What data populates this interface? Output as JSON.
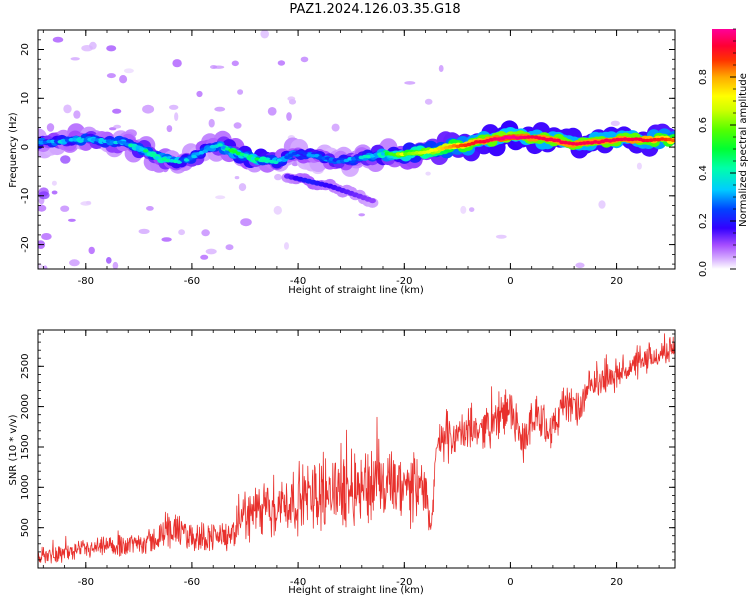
{
  "title": "PAZ1.2024.126.03.35.G18",
  "chart_data": [
    {
      "type": "heatmap",
      "title": "PAZ1.2024.126.03.35.G18",
      "xlabel": "Height of straight line (km)",
      "ylabel": "Frequency (Hz)",
      "xlim": [
        -89,
        31
      ],
      "ylim": [
        -25,
        24
      ],
      "xticks": [
        -80,
        -60,
        -40,
        -20,
        0,
        20
      ],
      "xtick_labels": [
        "-80",
        "-60",
        "-40",
        "-20",
        "0",
        "20"
      ],
      "yticks": [
        -20,
        -10,
        0,
        10,
        20
      ],
      "ytick_labels": [
        "-20",
        "-10",
        "0",
        "10",
        "20"
      ],
      "colorbar": {
        "label": "Normalized spectral amplitude",
        "range": [
          0,
          1
        ],
        "ticks": [
          0.0,
          0.2,
          0.4,
          0.6,
          0.8
        ],
        "tick_labels": [
          "0.0",
          "0.2",
          "0.4",
          "0.6",
          "0.8"
        ],
        "colormap": "gist_ncar-like (white→purple→blue→cyan→green→yellow→orange→red→magenta)"
      },
      "ridge": {
        "x": [
          -87,
          -82,
          -78,
          -74,
          -70,
          -66,
          -62,
          -58,
          -55,
          -52,
          -48,
          -44,
          -40,
          -36,
          -32,
          -28,
          -24,
          -20,
          -16,
          -12,
          -8,
          -4,
          0,
          4,
          8,
          12,
          16,
          20,
          24,
          28,
          31
        ],
        "frequency_hz": [
          1,
          1.5,
          1.5,
          1,
          0,
          -2.5,
          -3,
          -1,
          0.5,
          -1,
          -2.5,
          -3,
          -1,
          -2,
          -3,
          -2,
          -1.5,
          -1.5,
          -1,
          0,
          0.5,
          1.5,
          2,
          2,
          1.5,
          0.5,
          1,
          1.5,
          1.5,
          1.5,
          1.5
        ],
        "amplitude": [
          0.25,
          0.35,
          0.3,
          0.3,
          0.35,
          0.4,
          0.3,
          0.3,
          0.3,
          0.45,
          0.4,
          0.35,
          0.25,
          0.3,
          0.25,
          0.3,
          0.4,
          0.55,
          0.65,
          0.75,
          0.85,
          0.9,
          0.95,
          0.9,
          0.9,
          0.9,
          0.9,
          0.9,
          0.9,
          0.85,
          0.8
        ]
      },
      "secondary_ridge": {
        "x": [
          -42,
          -38,
          -34,
          -30,
          -26
        ],
        "frequency_hz": [
          -6,
          -7,
          -8,
          -9.5,
          -11
        ],
        "amplitude": [
          0.1,
          0.15,
          0.12,
          0.1,
          0.08
        ]
      }
    },
    {
      "type": "line",
      "xlabel": "Height of straight line (km)",
      "ylabel": "SNR (10 * v/v)",
      "xlim": [
        -89,
        31
      ],
      "ylim": [
        0,
        2950
      ],
      "xticks": [
        -80,
        -60,
        -40,
        -20,
        0,
        20
      ],
      "xtick_labels": [
        "-80",
        "-60",
        "-40",
        "-20",
        "0",
        "20"
      ],
      "yticks": [
        500,
        1000,
        1500,
        2000,
        2500
      ],
      "ytick_labels": [
        "500",
        "1000",
        "1500",
        "2000",
        "2500"
      ],
      "series": [
        {
          "color": "#e8302c",
          "x": [
            -89,
            -85,
            -80,
            -75,
            -70,
            -66,
            -65,
            -60,
            -55,
            -52,
            -51,
            -45,
            -40,
            -35,
            -30,
            -25,
            -20,
            -16,
            -15,
            -14,
            -10,
            -5,
            -2,
            0,
            2,
            5,
            8,
            10,
            13,
            15,
            20,
            25,
            30,
            31
          ],
          "values": [
            150,
            180,
            220,
            260,
            320,
            350,
            500,
            380,
            400,
            380,
            650,
            750,
            850,
            950,
            1000,
            1050,
            950,
            1000,
            400,
            1500,
            1650,
            1750,
            1850,
            2000,
            1550,
            1900,
            1700,
            2050,
            1950,
            2250,
            2400,
            2550,
            2700,
            2750
          ],
          "noise_amplitude": [
            100,
            110,
            120,
            140,
            160,
            170,
            260,
            190,
            190,
            180,
            320,
            380,
            420,
            480,
            500,
            520,
            460,
            420,
            150,
            260,
            260,
            260,
            280,
            300,
            260,
            260,
            260,
            260,
            230,
            200,
            190,
            180,
            160,
            160
          ]
        }
      ]
    }
  ]
}
